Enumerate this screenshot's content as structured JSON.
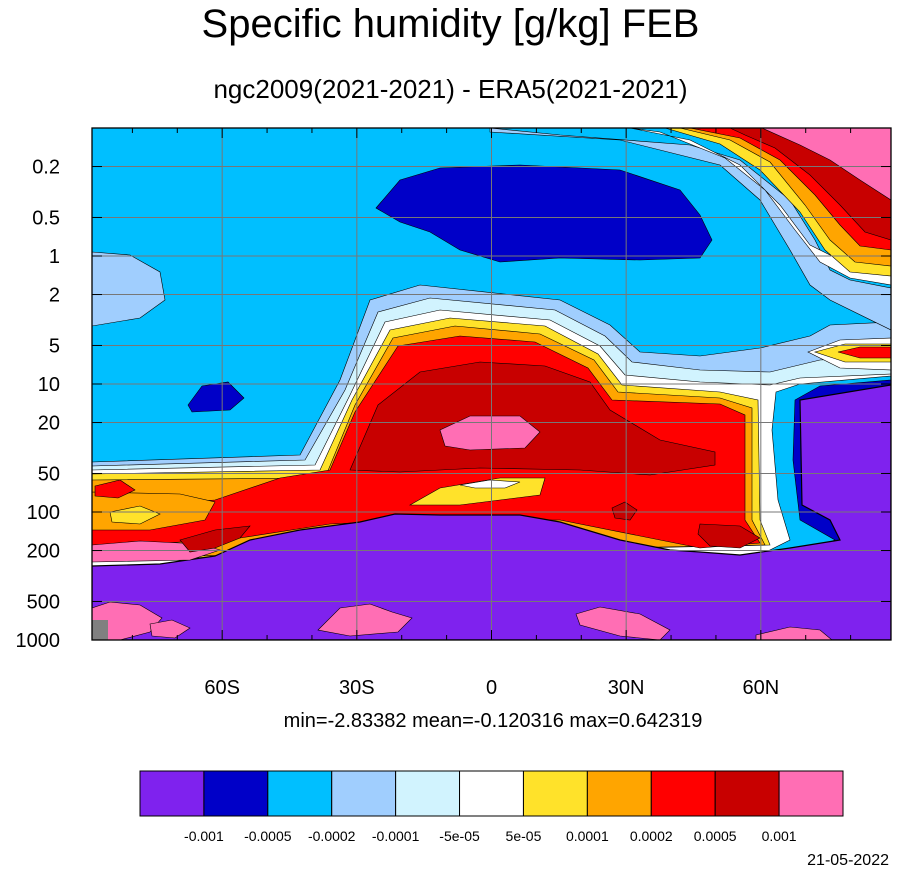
{
  "title": "Specific humidity [g/kg] FEB",
  "subtitle": "ngc2009(2021-2021) - ERA5(2021-2021)",
  "stats": "min=-2.83382   mean=-0.120316   max=0.642319",
  "datestamp": "21-05-2022",
  "colors": {
    "purple": "#7f22ee",
    "navy": "#0000c8",
    "sky": "#00bfff",
    "lightblue": "#a0cefe",
    "paleblue": "#d1f3fe",
    "white": "#ffffff",
    "yellow": "#ffe22a",
    "orange": "#ffa500",
    "red": "#ff0000",
    "darkred": "#c80000",
    "pink": "#ff6eb4",
    "missing": "#808080"
  },
  "chart_data": {
    "type": "heatmap",
    "description_kind": "filled contour, latitude-pressure cross section",
    "x_axis": {
      "ticks": [
        "60S",
        "30S",
        "0",
        "30N",
        "60N"
      ],
      "values": [
        -60,
        -30,
        0,
        30,
        60
      ],
      "range": [
        -89,
        89
      ]
    },
    "y_axis": {
      "ticks": [
        "0.2",
        "0.5",
        "1",
        "2",
        "5",
        "10",
        "20",
        "50",
        "100",
        "200",
        "500",
        "1000"
      ],
      "values": [
        0.2,
        0.5,
        1,
        2,
        5,
        10,
        20,
        50,
        100,
        200,
        500,
        1000
      ],
      "scale": "log",
      "inverted": true,
      "range": [
        0.1,
        1000
      ]
    },
    "grid": true,
    "levels": [
      "-0.001",
      "-0.0005",
      "-0.0002",
      "-0.0001",
      "-5e-05",
      "5e-05",
      "0.0001",
      "0.0002",
      "0.0005",
      "0.001"
    ],
    "colorbar": [
      {
        "color": "#7f22ee"
      },
      {
        "color": "#0000c8"
      },
      {
        "color": "#00bfff"
      },
      {
        "color": "#a0cefe"
      },
      {
        "color": "#d1f3fe"
      },
      {
        "color": "#ffffff"
      },
      {
        "color": "#ffe22a"
      },
      {
        "color": "#ffa500"
      },
      {
        "color": "#ff0000"
      },
      {
        "color": "#c80000"
      },
      {
        "color": "#ff6eb4"
      }
    ],
    "min": -2.83382,
    "mean": -0.120316,
    "max": 0.642319
  }
}
